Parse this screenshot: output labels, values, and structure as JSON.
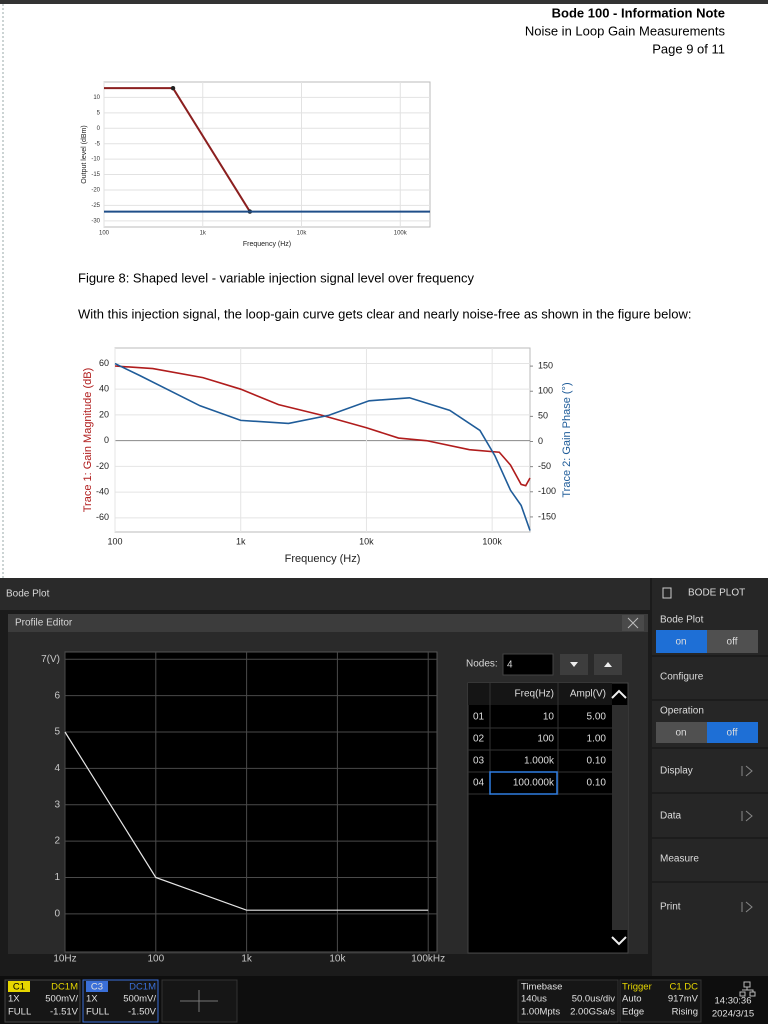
{
  "header": {
    "title": "Bode 100 - Information Note",
    "subtitle": "Noise in Loop Gain Measurements",
    "page": "Page 9 of 11"
  },
  "caption": "Figure 8: Shaped level - variable injection signal level over frequency",
  "paragraph": "With this injection signal, the loop-gain curve gets clear and nearly noise-free as shown in the figure below:",
  "chart_data": [
    {
      "type": "line",
      "xscale": "log",
      "xlabel": "Frequency (Hz)",
      "ylabel": "Output level (dBm)",
      "xlim": [
        100,
        200000
      ],
      "xticks": [
        100,
        {
          "value": 1000,
          "label": "1k"
        },
        {
          "value": 10000,
          "label": "10k"
        },
        {
          "value": 100000,
          "label": "100k"
        }
      ],
      "ylim": [
        -32,
        15
      ],
      "yticks": [
        10,
        5,
        0,
        -5,
        -10,
        -15,
        -20,
        -25,
        -30
      ],
      "grid": true,
      "series": [
        {
          "color": "#8b1f1f",
          "x": [
            100,
            500,
            3000
          ],
          "values": [
            13,
            13,
            -27
          ]
        },
        {
          "color": "#1f4e89",
          "x": [
            100,
            200000
          ],
          "values": [
            -27,
            -27
          ]
        }
      ]
    },
    {
      "type": "line",
      "xscale": "log",
      "xlabel": "Frequency (Hz)",
      "ylabel": "Trace 1: Gain Magnitude (dB)",
      "y2label": "Trace 2: Gain Phase (°)",
      "xlim": [
        100,
        200000
      ],
      "xticks": [
        100,
        {
          "value": 1000,
          "label": "1k"
        },
        {
          "value": 10000,
          "label": "10k"
        },
        {
          "value": 100000,
          "label": "100k"
        }
      ],
      "ylim": [
        -71,
        72
      ],
      "yticks": [
        60,
        40,
        20,
        0,
        -20,
        -40,
        -60
      ],
      "y2lim": [
        -180,
        186
      ],
      "y2ticks": [
        150,
        100,
        50,
        0,
        -50,
        -100,
        -150
      ],
      "grid": true,
      "series": [
        {
          "color": "#b01c1c",
          "x": [
            100,
            200,
            500,
            1000,
            2000,
            4300,
            10000,
            18000,
            30000,
            66000,
            114000,
            140000,
            170000,
            185000,
            200000
          ],
          "values": [
            58,
            56,
            49,
            40,
            28,
            20,
            10,
            2,
            0,
            -7,
            -9,
            -19,
            -34,
            -35,
            -29
          ]
        },
        {
          "color": "#1f5c99",
          "axis": "y2",
          "x": [
            100,
            158,
            475,
            1000,
            2400,
            5000,
            10500,
            22000,
            46000,
            80000,
            105000,
            140000,
            170000,
            200000
          ],
          "values": [
            155,
            131,
            71,
            42,
            36,
            52,
            81,
            87,
            62,
            22,
            -28,
            -97,
            -127,
            -177
          ]
        }
      ]
    },
    {
      "type": "line",
      "xscale": "log",
      "xlim": [
        10,
        125000
      ],
      "xticks": [
        {
          "value": 10,
          "label": "10Hz"
        },
        100,
        {
          "value": 1000,
          "label": "1k"
        },
        {
          "value": 10000,
          "label": "10k"
        },
        {
          "value": 100000,
          "label": "100kHz"
        }
      ],
      "ylim": [
        -1.05,
        7.2
      ],
      "yticks": [
        0,
        1,
        2,
        3,
        4,
        5,
        6,
        {
          "value": 7,
          "label": "7(V)"
        }
      ],
      "grid": true,
      "series": [
        {
          "color": "#e6e6e6",
          "x": [
            10,
            100,
            1000,
            100000
          ],
          "values": [
            5,
            1,
            0.1,
            0.1
          ]
        }
      ]
    }
  ],
  "scope": {
    "title": "Bode Plot",
    "editor": "Profile Editor",
    "nodes_label": "Nodes:",
    "nodes": "4",
    "table": {
      "columns": [
        "Freq(Hz)",
        "Ampl(V)"
      ],
      "rows": [
        [
          "01",
          "10",
          "5.00"
        ],
        [
          "02",
          "100",
          "1.00"
        ],
        [
          "03",
          "1.000k",
          "0.10"
        ],
        [
          "04",
          "100.000k",
          "0.10"
        ]
      ]
    },
    "menu": {
      "header": "BODE PLOT",
      "bode_plot": "Bode Plot",
      "bode_on": "on",
      "bode_off": "off",
      "configure": "Configure",
      "operation": "Operation",
      "op_on": "on",
      "op_off": "off",
      "display": "Display",
      "data": "Data",
      "measure": "Measure",
      "print": "Print"
    },
    "c1": {
      "name": "C1",
      "coupling": "DC1M",
      "probe": "1X",
      "scale": "500mV/",
      "bw": "FULL",
      "offset": "-1.51V"
    },
    "c3": {
      "name": "C3",
      "coupling": "DC1M",
      "probe": "1X",
      "scale": "500mV/",
      "bw": "FULL",
      "offset": "-1.50V"
    },
    "timebase": {
      "label": "Timebase",
      "delay": "140us",
      "scale": "50.0us/div",
      "points": "1.00Mpts",
      "rate": "2.00GSa/s"
    },
    "trigger": {
      "label": "Trigger",
      "source": "C1 DC",
      "mode": "Auto",
      "level": "917mV",
      "type": "Edge",
      "slope": "Rising"
    },
    "clock": {
      "time": "14:30:36",
      "date": "2024/3/15"
    }
  }
}
